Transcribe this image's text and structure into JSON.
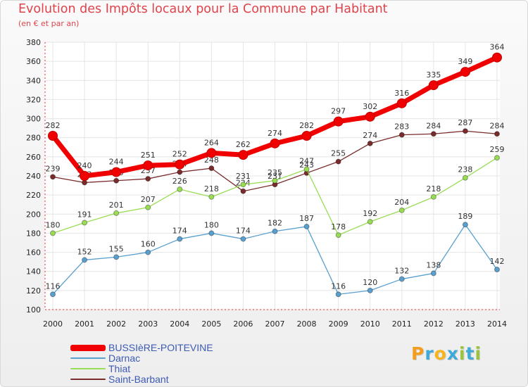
{
  "header": {
    "title": "Evolution des Impôts locaux pour la Commune par Habitant",
    "subtitle": "(en € et par an)"
  },
  "logo": {
    "text": "Proxiti",
    "colors": [
      "#f59c1c",
      "#3fa9d8",
      "#f5b51c",
      "#3fa9d8",
      "#9bc33c",
      "#3fa9d8",
      "#9bc33c"
    ]
  },
  "chart_data": {
    "type": "line",
    "title": "Evolution des Impôts locaux pour la Commune par Habitant",
    "subtitle": "(en € et par an)",
    "xlabel": "",
    "ylabel": "",
    "ylim": [
      100,
      380
    ],
    "yticks": [
      100,
      120,
      140,
      160,
      180,
      200,
      220,
      240,
      260,
      280,
      300,
      320,
      340,
      360,
      380
    ],
    "grid": true,
    "legend_position": "bottom-left",
    "categories": [
      "2000",
      "2001",
      "2002",
      "2003",
      "2004",
      "2005",
      "2006",
      "2007",
      "2008",
      "2009",
      "2010",
      "2011",
      "2012",
      "2013",
      "2014"
    ],
    "series": [
      {
        "name": "BUSSIèRE-POITEVINE",
        "color": "#f00000",
        "values": [
          282,
          240,
          244,
          251,
          252,
          264,
          262,
          274,
          282,
          297,
          302,
          316,
          335,
          349,
          364
        ]
      },
      {
        "name": "Darnac",
        "color": "#5aa0cf",
        "values": [
          116,
          152,
          155,
          160,
          174,
          180,
          174,
          182,
          187,
          116,
          120,
          132,
          138,
          189,
          142
        ]
      },
      {
        "name": "Thiat",
        "color": "#99dd55",
        "values": [
          180,
          191,
          201,
          207,
          226,
          218,
          231,
          235,
          247,
          178,
          192,
          204,
          218,
          238,
          259
        ]
      },
      {
        "name": "Saint-Barbant",
        "color": "#7a2b2b",
        "values": [
          239,
          233,
          235,
          237,
          244,
          248,
          224,
          231,
          243,
          255,
          274,
          283,
          284,
          287,
          284
        ]
      }
    ]
  }
}
